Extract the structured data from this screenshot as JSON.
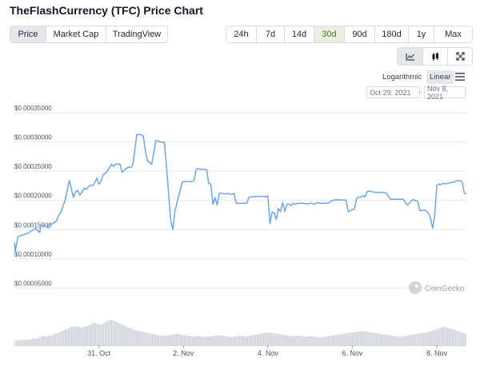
{
  "header": {
    "title": "TheFlashCurrency (TFC) Price Chart"
  },
  "view_tabs": [
    {
      "label": "Price",
      "active": true
    },
    {
      "label": "Market Cap",
      "active": false
    },
    {
      "label": "TradingView",
      "active": false
    }
  ],
  "range_tabs": [
    {
      "label": "24h",
      "active": false
    },
    {
      "label": "7d",
      "active": false
    },
    {
      "label": "14d",
      "active": false
    },
    {
      "label": "30d",
      "active": true
    },
    {
      "label": "90d",
      "active": false
    },
    {
      "label": "180d",
      "active": false
    },
    {
      "label": "1y",
      "active": false
    },
    {
      "label": "Max",
      "active": false
    }
  ],
  "chart_type_buttons": [
    {
      "icon": "line-chart-icon",
      "active": true
    },
    {
      "icon": "candlestick-icon",
      "active": false
    },
    {
      "icon": "fullscreen-icon",
      "active": false
    }
  ],
  "scale": {
    "log_label": "Logarithmic",
    "linear_label": "Linear",
    "active": "Linear"
  },
  "date_range": {
    "from": "Oct 29, 2021",
    "arrow": "→",
    "to": "Nov 8, 2021"
  },
  "watermark": "CoinGecko",
  "colors": {
    "line": "#6ea6e8",
    "volume": "#d1d5db",
    "grid": "#e5e7eb",
    "active_range": "#4d7c0f"
  },
  "chart_data": {
    "type": "line",
    "y_tick_labels": [
      "$0.00035000",
      "$0.00030000",
      "$0.00025000",
      "$0.00020000",
      "$0.00015000",
      "$0.00010000",
      "$0.00005000"
    ],
    "y_ticks": [
      0.00035,
      0.0003,
      0.00025,
      0.0002,
      0.00015,
      0.0001,
      5e-05
    ],
    "ylim": [
      0,
      0.00035
    ],
    "x_tick_labels": [
      "31. Oct",
      "2. Nov",
      "4. Nov",
      "6. Nov",
      "8. Nov"
    ],
    "x_ticks": [
      2.0,
      4.0,
      6.0,
      8.0,
      10.0
    ],
    "xlim": [
      0.0,
      10.7
    ],
    "grid": true,
    "series": [
      {
        "x": [
          0.0,
          0.02,
          0.08,
          0.3,
          0.5,
          0.6,
          0.62,
          0.7,
          0.8,
          0.82,
          0.9,
          1.0,
          1.05,
          1.1,
          1.2,
          1.3,
          1.4,
          1.45,
          1.5,
          1.55,
          1.6,
          1.65,
          1.7,
          1.75,
          1.8,
          1.85,
          1.9,
          1.95,
          2.0,
          2.05,
          2.1,
          2.15,
          2.2,
          2.3,
          2.35,
          2.4,
          2.5,
          2.55,
          2.6,
          2.7,
          2.75,
          2.8,
          2.85,
          2.9,
          2.95,
          3.0,
          3.05,
          3.1,
          3.15,
          3.25,
          3.35,
          3.4,
          3.45,
          3.55,
          3.6,
          3.7,
          3.75,
          3.8,
          3.95,
          3.98,
          4.0,
          4.1,
          4.15,
          4.2,
          4.25,
          4.3,
          4.35,
          4.4,
          4.5,
          4.55,
          4.6,
          4.65,
          4.7,
          4.75,
          4.8,
          4.85,
          4.9,
          5.0,
          5.05,
          5.1,
          5.15,
          5.2,
          5.25,
          5.3,
          5.5,
          5.55,
          5.6,
          5.7,
          5.8,
          5.95,
          6.0,
          6.05,
          6.1,
          6.15,
          6.2,
          6.25,
          6.3,
          6.35,
          6.4,
          6.45,
          6.5,
          6.55,
          6.6,
          6.65,
          6.7,
          6.75,
          6.8,
          6.85,
          6.9,
          6.95,
          7.0,
          7.05,
          7.1,
          7.15,
          7.25,
          7.35,
          7.45,
          7.5,
          7.6,
          7.65,
          7.7,
          7.75,
          7.8,
          7.85,
          7.9,
          7.95,
          8.0,
          8.05,
          8.1,
          8.15,
          8.2,
          8.25,
          8.3,
          8.35,
          8.4,
          8.45,
          8.5,
          8.55,
          8.6,
          8.7,
          8.8,
          8.9,
          9.0,
          9.1,
          9.15,
          9.2,
          9.3,
          9.35,
          9.4,
          9.45,
          9.5,
          9.55,
          9.6,
          9.65,
          9.7,
          9.75,
          9.8,
          9.85,
          9.9,
          9.95,
          10.0,
          10.05,
          10.1,
          10.15,
          10.2,
          10.3,
          10.4,
          10.45,
          10.5,
          10.55,
          10.6,
          10.65,
          10.7
        ],
        "y": [
          0.000128,
          0.000112,
          0.000138,
          0.000143,
          0.000152,
          0.000145,
          0.000158,
          0.000157,
          0.000153,
          0.000158,
          0.00016,
          0.000165,
          0.000175,
          0.00018,
          0.0002,
          0.000234,
          0.000205,
          0.000215,
          0.000217,
          0.000209,
          0.000214,
          0.000221,
          0.000219,
          0.000223,
          0.000226,
          0.000225,
          0.00023,
          0.000238,
          0.000228,
          0.000232,
          0.000244,
          0.000246,
          0.00025,
          0.000262,
          0.000258,
          0.000262,
          0.000262,
          0.000248,
          0.000252,
          0.000257,
          0.000256,
          0.00026,
          0.000286,
          0.000313,
          0.000313,
          0.000312,
          0.00031,
          0.000285,
          0.000268,
          0.000262,
          0.000302,
          0.000302,
          0.0003,
          0.000299,
          0.000258,
          0.000165,
          0.00015,
          0.000182,
          0.000225,
          0.000232,
          0.000232,
          0.000232,
          0.000232,
          0.000232,
          0.000233,
          0.000253,
          0.000254,
          0.000253,
          0.000253,
          0.000252,
          0.000229,
          0.000228,
          0.000193,
          0.000205,
          0.000192,
          0.000212,
          0.000212,
          0.000211,
          0.000212,
          0.000211,
          0.00021,
          0.000212,
          0.000195,
          0.000195,
          0.000195,
          0.000205,
          0.000206,
          0.000206,
          0.000207,
          0.000206,
          0.000208,
          0.00016,
          0.00018,
          0.000179,
          0.000167,
          0.000186,
          0.000181,
          0.000196,
          0.000181,
          0.000193,
          0.000194,
          0.000191,
          0.000195,
          0.000193,
          0.000195,
          0.000195,
          0.000195,
          0.000195,
          0.000194,
          0.000194,
          0.000195,
          0.000195,
          0.000193,
          0.000196,
          0.000195,
          0.000195,
          0.000196,
          0.000199,
          0.000201,
          0.000201,
          0.000201,
          0.000201,
          0.0002,
          0.000201,
          0.000181,
          0.000182,
          0.000184,
          0.000186,
          0.000203,
          0.000206,
          0.000205,
          0.000208,
          0.000206,
          0.000215,
          0.000216,
          0.000215,
          0.000214,
          0.000214,
          0.000213,
          0.000214,
          0.000213,
          0.000202,
          0.000202,
          0.000202,
          0.000202,
          0.000202,
          0.000192,
          0.000195,
          0.0002,
          0.000201,
          0.000199,
          0.000198,
          0.000182,
          0.000183,
          0.000183,
          0.000182,
          0.000178,
          0.00017,
          0.000152,
          0.000175,
          0.000225,
          0.000228,
          0.000227,
          0.000229,
          0.000228,
          0.00023,
          0.000231,
          0.000233,
          0.000234,
          0.000233,
          0.000232,
          0.000212,
          0.000211
        ]
      }
    ],
    "volume": [
      0.17,
      0.18,
      0.19,
      0.18,
      0.2,
      0.21,
      0.2,
      0.22,
      0.23,
      0.22,
      0.24,
      0.26,
      0.27,
      0.25,
      0.27,
      0.3,
      0.33,
      0.35,
      0.37,
      0.34,
      0.36,
      0.38,
      0.37,
      0.39,
      0.42,
      0.45,
      0.47,
      0.5,
      0.52,
      0.55,
      0.58,
      0.6,
      0.62,
      0.66,
      0.7,
      0.72,
      0.74,
      0.72,
      0.75,
      0.73,
      0.71,
      0.69,
      0.7,
      0.72,
      0.74,
      0.76,
      0.79,
      0.82,
      0.85,
      0.88,
      0.86,
      0.84,
      0.82,
      0.8,
      0.83,
      0.87,
      0.9,
      0.93,
      0.96,
      1.0,
      0.98,
      0.96,
      0.94,
      0.9,
      0.88,
      0.85,
      0.82,
      0.8,
      0.77,
      0.74,
      0.7,
      0.68,
      0.65,
      0.62,
      0.6,
      0.58,
      0.56,
      0.55,
      0.54,
      0.52,
      0.51,
      0.5,
      0.49,
      0.47,
      0.46,
      0.44,
      0.42,
      0.41,
      0.4,
      0.39,
      0.38,
      0.37,
      0.36,
      0.37,
      0.38,
      0.39,
      0.4,
      0.41,
      0.43,
      0.44,
      0.45,
      0.44,
      0.43,
      0.41,
      0.4,
      0.39,
      0.38,
      0.37,
      0.36,
      0.35,
      0.34,
      0.35,
      0.36,
      0.37,
      0.36,
      0.35,
      0.34,
      0.33,
      0.32,
      0.33,
      0.34,
      0.35,
      0.36,
      0.37,
      0.38,
      0.39,
      0.4,
      0.39,
      0.38,
      0.37,
      0.36,
      0.35,
      0.34,
      0.33,
      0.32,
      0.33,
      0.34,
      0.35,
      0.36,
      0.37,
      0.38,
      0.37,
      0.36,
      0.35,
      0.36,
      0.37,
      0.38,
      0.39,
      0.4,
      0.41,
      0.43,
      0.44,
      0.45,
      0.46,
      0.47,
      0.48,
      0.49,
      0.5,
      0.49,
      0.48,
      0.47,
      0.46,
      0.45,
      0.44,
      0.43,
      0.42,
      0.41,
      0.4,
      0.39,
      0.38,
      0.37,
      0.36,
      0.35,
      0.36,
      0.37,
      0.38,
      0.37,
      0.36,
      0.35,
      0.34,
      0.33,
      0.34,
      0.35,
      0.36,
      0.35,
      0.34,
      0.33,
      0.32,
      0.31,
      0.3,
      0.31,
      0.32,
      0.33,
      0.34,
      0.35,
      0.36,
      0.37,
      0.38,
      0.39,
      0.4,
      0.41,
      0.42,
      0.43,
      0.44,
      0.45,
      0.46,
      0.47,
      0.48,
      0.49,
      0.5,
      0.51,
      0.52,
      0.53,
      0.54,
      0.55,
      0.56,
      0.55,
      0.54,
      0.53,
      0.52,
      0.51,
      0.5,
      0.49,
      0.48,
      0.47,
      0.46,
      0.45,
      0.44,
      0.43,
      0.42,
      0.41,
      0.4,
      0.39,
      0.38,
      0.37,
      0.36,
      0.35,
      0.34,
      0.33,
      0.34,
      0.35,
      0.36,
      0.37,
      0.38,
      0.39,
      0.4,
      0.41,
      0.42,
      0.43,
      0.44,
      0.45,
      0.46,
      0.47,
      0.48,
      0.49,
      0.5,
      0.52,
      0.54,
      0.56,
      0.58,
      0.6,
      0.62,
      0.64,
      0.66,
      0.68,
      0.7,
      0.72,
      0.7,
      0.68,
      0.66,
      0.64,
      0.62,
      0.6,
      0.58,
      0.56,
      0.54,
      0.52,
      0.5,
      0.48,
      0.46
    ]
  }
}
